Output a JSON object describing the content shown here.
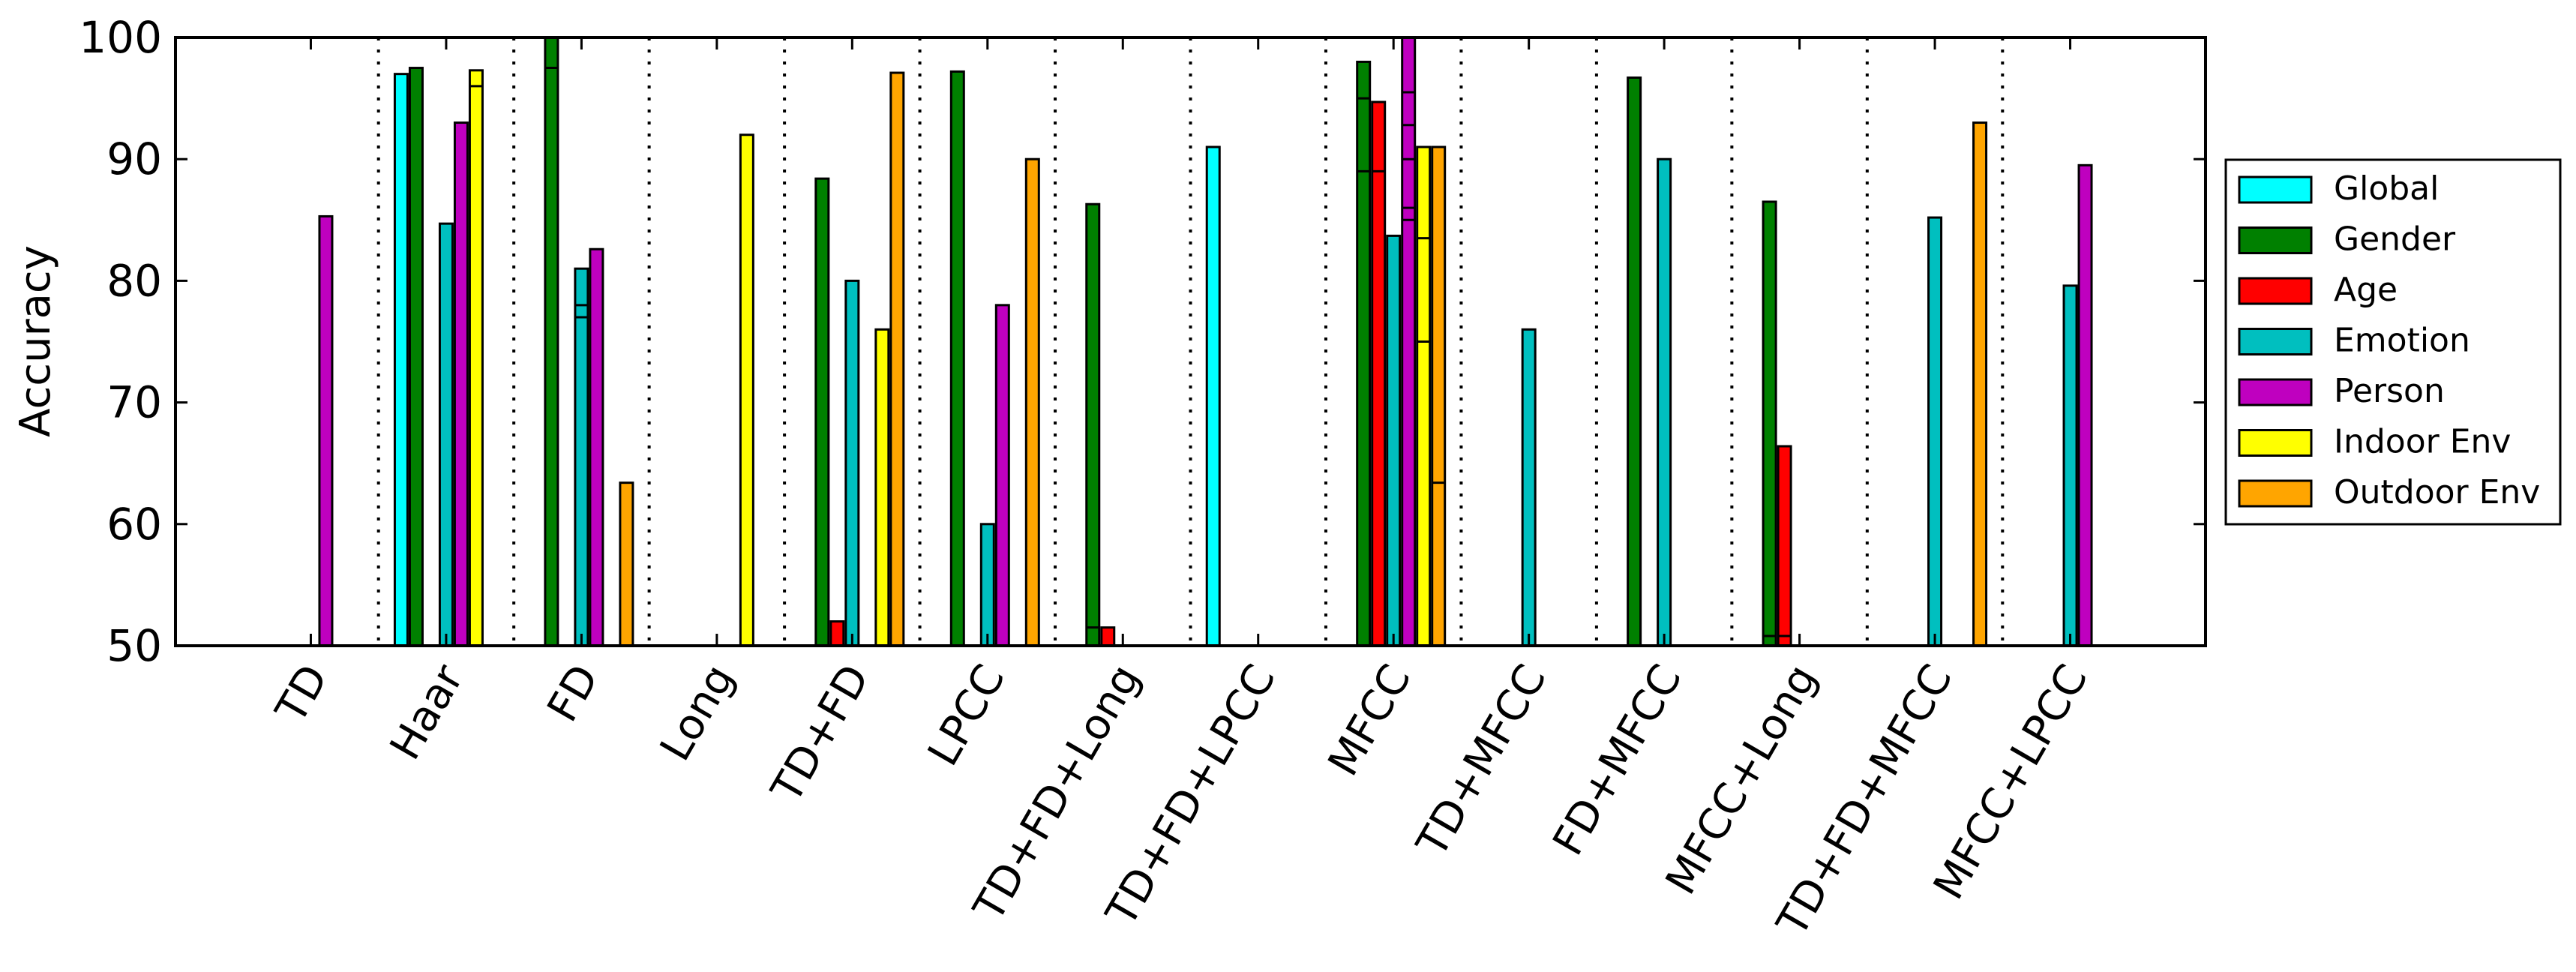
{
  "chart_data": {
    "type": "bar",
    "title": "",
    "xlabel": "",
    "ylabel": "Accuracy",
    "ylim": [
      50,
      100
    ],
    "yticks": [
      50,
      60,
      70,
      80,
      90,
      100
    ],
    "grid": false,
    "legend_position": "right",
    "categories": [
      "TD",
      "Haar",
      "FD",
      "Long",
      "TD+FD",
      "LPCC",
      "TD+FD+Long",
      "TD+FD+LPCC",
      "MFCC",
      "TD+MFCC",
      "FD+MFCC",
      "MFCC+Long",
      "TD+FD+MFCC",
      "MFCC+LPCC"
    ],
    "series": [
      {
        "name": "Global",
        "color": "#00ffff",
        "values": [
          null,
          97,
          null,
          null,
          null,
          null,
          null,
          91,
          null,
          null,
          null,
          null,
          null,
          null
        ],
        "segments": [
          [],
          [],
          [],
          [],
          [],
          [],
          [],
          [],
          [],
          [],
          [],
          [],
          [],
          []
        ]
      },
      {
        "name": "Gender",
        "color": "#008000",
        "values": [
          null,
          97.5,
          100,
          null,
          88.4,
          97.2,
          86.3,
          null,
          98,
          null,
          96.7,
          86.5,
          null,
          null
        ],
        "segments": [
          [],
          [],
          [
            97.5
          ],
          [],
          [],
          [],
          [
            51.5
          ],
          [],
          [
            95,
            89
          ],
          [],
          [],
          [
            50.8
          ],
          [],
          []
        ]
      },
      {
        "name": "Age",
        "color": "#ff0000",
        "values": [
          null,
          null,
          null,
          null,
          52,
          null,
          51.5,
          null,
          94.7,
          null,
          null,
          66.4,
          null,
          null
        ],
        "segments": [
          [],
          [],
          [],
          [],
          [],
          [],
          [],
          [],
          [
            89
          ],
          [],
          [],
          [
            50.8
          ],
          [],
          []
        ]
      },
      {
        "name": "Emotion",
        "color": "#00bfbf",
        "values": [
          null,
          84.7,
          81,
          null,
          80,
          60,
          null,
          null,
          83.7,
          76,
          90,
          null,
          85.2,
          79.6
        ],
        "segments": [
          [],
          [],
          [
            78,
            77
          ],
          [],
          [],
          [],
          [],
          [],
          [],
          [],
          [],
          [],
          [],
          []
        ]
      },
      {
        "name": "Person",
        "color": "#bf00bf",
        "values": [
          85.3,
          93,
          82.6,
          null,
          null,
          78,
          null,
          null,
          100,
          null,
          null,
          null,
          null,
          89.5
        ],
        "segments": [
          [],
          [],
          [],
          [],
          [],
          [],
          [],
          [],
          [
            95.5,
            92.8,
            90,
            86,
            85
          ],
          [],
          [],
          [],
          [],
          []
        ]
      },
      {
        "name": "Indoor Env",
        "color": "#ffff00",
        "values": [
          null,
          97.3,
          null,
          92,
          76,
          null,
          null,
          null,
          91,
          null,
          null,
          null,
          null,
          null
        ],
        "segments": [
          [],
          [
            96
          ],
          [],
          [],
          [],
          [],
          [],
          [],
          [
            83.5,
            75
          ],
          [],
          [],
          [],
          [],
          []
        ]
      },
      {
        "name": "Outdoor Env",
        "color": "#ffa500",
        "values": [
          null,
          null,
          63.4,
          null,
          97.1,
          90,
          null,
          null,
          91,
          null,
          null,
          null,
          93,
          null
        ],
        "segments": [
          [],
          [],
          [],
          [],
          [],
          [],
          [],
          [],
          [
            63.4
          ],
          [],
          [],
          [],
          [],
          []
        ]
      }
    ]
  }
}
